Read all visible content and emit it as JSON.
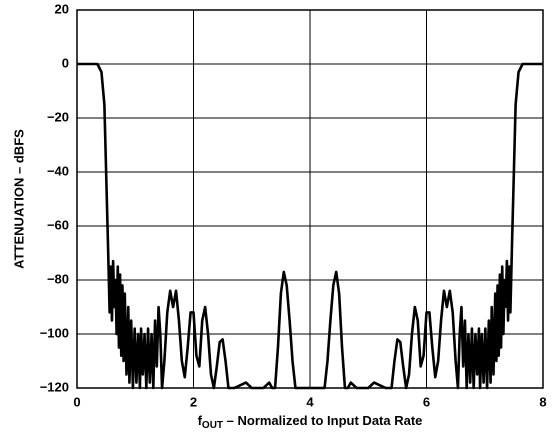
{
  "chart_data": {
    "type": "line",
    "ylabel": "ATTENUATION – dBFS",
    "xlabel": {
      "symbol": "f",
      "subscript": "OUT",
      "text": " – Normalized to Input Data Rate"
    },
    "color": "#000000",
    "grid": true,
    "xlim": [
      0,
      8
    ],
    "xticks": [
      0,
      2,
      4,
      6,
      8
    ],
    "ylim": [
      -120,
      20
    ],
    "yticks": [
      {
        "value": -120,
        "label": "−120"
      },
      {
        "value": -100,
        "label": "−100"
      },
      {
        "value": -80,
        "label": "−80"
      },
      {
        "value": -60,
        "label": "−60"
      },
      {
        "value": -40,
        "label": "−40"
      },
      {
        "value": -20,
        "label": "−20"
      },
      0,
      20
    ],
    "x": [
      0,
      0.2,
      0.35,
      0.42,
      0.47,
      0.5,
      0.53,
      0.56,
      0.58,
      0.6,
      0.62,
      0.64,
      0.66,
      0.68,
      0.7,
      0.72,
      0.74,
      0.76,
      0.78,
      0.8,
      0.82,
      0.85,
      0.88,
      0.9,
      0.93,
      0.96,
      0.99,
      1.02,
      1.05,
      1.08,
      1.1,
      1.13,
      1.16,
      1.19,
      1.22,
      1.25,
      1.28,
      1.31,
      1.34,
      1.37,
      1.4,
      1.43,
      1.46,
      1.5,
      1.55,
      1.6,
      1.65,
      1.7,
      1.75,
      1.8,
      1.85,
      1.9,
      1.95,
      2.0,
      2.05,
      2.1,
      2.15,
      2.2,
      2.25,
      2.3,
      2.35,
      2.4,
      2.45,
      2.5,
      2.55,
      2.6,
      2.7,
      2.8,
      2.9,
      3.0,
      3.1,
      3.2,
      3.3,
      3.35,
      3.4,
      3.45,
      3.5,
      3.55,
      3.6,
      3.65,
      3.7,
      3.75,
      4.0,
      4.25,
      4.3,
      4.35,
      4.4,
      4.45,
      4.5,
      4.55,
      4.6,
      4.65,
      4.7,
      4.8,
      4.9,
      5.0,
      5.1,
      5.2,
      5.3,
      5.4,
      5.45,
      5.5,
      5.55,
      5.6,
      5.65,
      5.7,
      5.75,
      5.8,
      5.85,
      5.9,
      5.95,
      6.0,
      6.05,
      6.1,
      6.15,
      6.2,
      6.25,
      6.3,
      6.35,
      6.4,
      6.45,
      6.5,
      6.54,
      6.57,
      6.6,
      6.63,
      6.66,
      6.69,
      6.72,
      6.75,
      6.78,
      6.81,
      6.84,
      6.87,
      6.9,
      6.92,
      6.95,
      6.98,
      7.01,
      7.04,
      7.07,
      7.1,
      7.12,
      7.15,
      7.18,
      7.2,
      7.22,
      7.24,
      7.26,
      7.28,
      7.3,
      7.32,
      7.34,
      7.36,
      7.38,
      7.4,
      7.42,
      7.44,
      7.47,
      7.5,
      7.53,
      7.58,
      7.65,
      7.8,
      8
    ],
    "values": [
      0,
      0,
      0,
      -3,
      -15,
      -40,
      -65,
      -92,
      -75,
      -95,
      -73,
      -90,
      -80,
      -100,
      -75,
      -105,
      -78,
      -108,
      -82,
      -110,
      -85,
      -115,
      -90,
      -118,
      -95,
      -120,
      -98,
      -118,
      -100,
      -120,
      -98,
      -115,
      -100,
      -120,
      -98,
      -118,
      -100,
      -120,
      -95,
      -112,
      -90,
      -100,
      -120,
      -110,
      -92,
      -84,
      -90,
      -84,
      -95,
      -110,
      -116,
      -105,
      -92,
      -92,
      -108,
      -112,
      -95,
      -90,
      -100,
      -115,
      -120,
      -112,
      -103,
      -102,
      -110,
      -120,
      -120,
      -119,
      -118,
      -120,
      -120,
      -120,
      -118,
      -120,
      -120,
      -105,
      -85,
      -77,
      -82,
      -95,
      -110,
      -120,
      -120,
      -120,
      -110,
      -95,
      -82,
      -77,
      -85,
      -105,
      -120,
      -120,
      -118,
      -120,
      -120,
      -120,
      -118,
      -119,
      -120,
      -120,
      -110,
      -102,
      -103,
      -112,
      -120,
      -115,
      -100,
      -90,
      -95,
      -112,
      -108,
      -92,
      -92,
      -105,
      -116,
      -110,
      -95,
      -84,
      -90,
      -84,
      -92,
      -110,
      -120,
      -100,
      -90,
      -112,
      -95,
      -120,
      -100,
      -118,
      -98,
      -120,
      -100,
      -115,
      -98,
      -120,
      -100,
      -118,
      -98,
      -120,
      -95,
      -118,
      -90,
      -115,
      -85,
      -110,
      -82,
      -108,
      -78,
      -105,
      -75,
      -100,
      -80,
      -90,
      -73,
      -95,
      -75,
      -92,
      -65,
      -40,
      -15,
      -3,
      0,
      0,
      0
    ]
  }
}
